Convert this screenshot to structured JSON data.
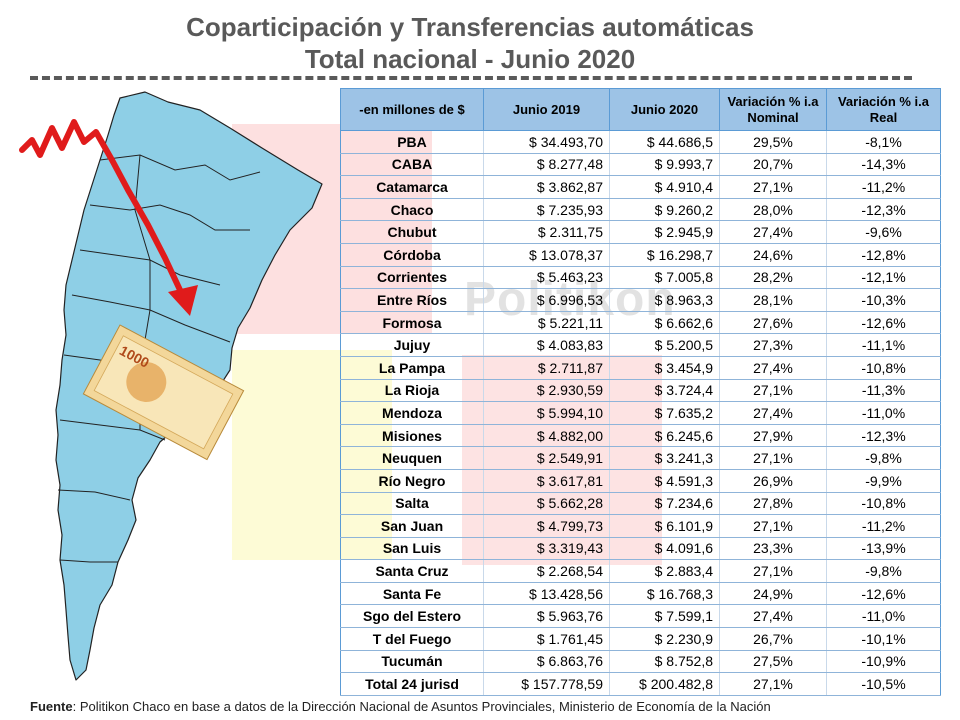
{
  "header": {
    "title_line1": "Coparticipación y Transferencias automáticas",
    "title_line2": "Total nacional - Junio 2020"
  },
  "watermark": "Politikon",
  "colors": {
    "header_fill": "#9dc3e6",
    "map_fill": "#8ecfe6",
    "arrow_red": "#e01b1b",
    "title_gray": "#595959"
  },
  "table": {
    "headers": [
      "-en millones de $",
      "Junio 2019",
      "Junio 2020",
      "Variación % i.a Nominal",
      "Variación % i.a Real"
    ],
    "rows": [
      [
        "PBA",
        "$ 34.493,70",
        "$ 44.686,5",
        "29,5%",
        "-8,1%"
      ],
      [
        "CABA",
        "$ 8.277,48",
        "$ 9.993,7",
        "20,7%",
        "-14,3%"
      ],
      [
        "Catamarca",
        "$ 3.862,87",
        "$ 4.910,4",
        "27,1%",
        "-11,2%"
      ],
      [
        "Chaco",
        "$ 7.235,93",
        "$ 9.260,2",
        "28,0%",
        "-12,3%"
      ],
      [
        "Chubut",
        "$ 2.311,75",
        "$ 2.945,9",
        "27,4%",
        "-9,6%"
      ],
      [
        "Córdoba",
        "$ 13.078,37",
        "$ 16.298,7",
        "24,6%",
        "-12,8%"
      ],
      [
        "Corrientes",
        "$ 5.463,23",
        "$ 7.005,8",
        "28,2%",
        "-12,1%"
      ],
      [
        "Entre Ríos",
        "$ 6.996,53",
        "$ 8.963,3",
        "28,1%",
        "-10,3%"
      ],
      [
        "Formosa",
        "$ 5.221,11",
        "$ 6.662,6",
        "27,6%",
        "-12,6%"
      ],
      [
        "Jujuy",
        "$ 4.083,83",
        "$ 5.200,5",
        "27,3%",
        "-11,1%"
      ],
      [
        "La Pampa",
        "$ 2.711,87",
        "$ 3.454,9",
        "27,4%",
        "-10,8%"
      ],
      [
        "La Rioja",
        "$ 2.930,59",
        "$ 3.724,4",
        "27,1%",
        "-11,3%"
      ],
      [
        "Mendoza",
        "$ 5.994,10",
        "$ 7.635,2",
        "27,4%",
        "-11,0%"
      ],
      [
        "Misiones",
        "$ 4.882,00",
        "$ 6.245,6",
        "27,9%",
        "-12,3%"
      ],
      [
        "Neuquen",
        "$ 2.549,91",
        "$ 3.241,3",
        "27,1%",
        "-9,8%"
      ],
      [
        "Río Negro",
        "$ 3.617,81",
        "$ 4.591,3",
        "26,9%",
        "-9,9%"
      ],
      [
        "Salta",
        "$ 5.662,28",
        "$ 7.234,6",
        "27,8%",
        "-10,8%"
      ],
      [
        "San Juan",
        "$ 4.799,73",
        "$ 6.101,9",
        "27,1%",
        "-11,2%"
      ],
      [
        "San Luis",
        "$ 3.319,43",
        "$ 4.091,6",
        "23,3%",
        "-13,9%"
      ],
      [
        "Santa Cruz",
        "$ 2.268,54",
        "$ 2.883,4",
        "27,1%",
        "-9,8%"
      ],
      [
        "Santa Fe",
        "$ 13.428,56",
        "$ 16.768,3",
        "24,9%",
        "-12,6%"
      ],
      [
        "Sgo del Estero",
        "$ 5.963,76",
        "$ 7.599,1",
        "27,4%",
        "-11,0%"
      ],
      [
        "T del Fuego",
        "$ 1.761,45",
        "$ 2.230,9",
        "26,7%",
        "-10,1%"
      ],
      [
        "Tucumán",
        "$ 6.863,76",
        "$ 8.752,8",
        "27,5%",
        "-10,9%"
      ],
      [
        "Total 24 jurisd",
        "$ 157.778,59",
        "$ 200.482,8",
        "27,1%",
        "-10,5%"
      ]
    ]
  },
  "footer": {
    "label": "Fuente",
    "text": ": Politikon Chaco en base a datos de la Dirección Nacional de Asuntos Provinciales, Ministerio de Economía de la Nación"
  },
  "banknote": {
    "denomination": "1000"
  }
}
